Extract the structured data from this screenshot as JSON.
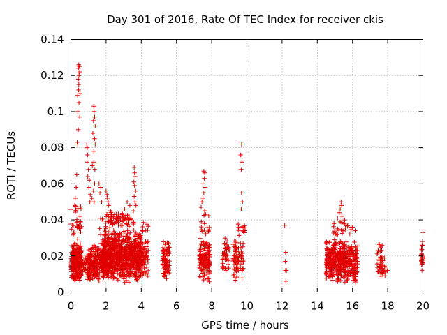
{
  "chart_data": {
    "type": "scatter",
    "title": "Day 301 of 2016, Rate Of TEC Index for receiver ckis",
    "xlabel": "GPS time / hours",
    "ylabel": "ROTI / TECUs",
    "xlim": [
      0,
      20
    ],
    "ylim": [
      0,
      0.14
    ],
    "xticks": [
      0,
      2,
      4,
      6,
      8,
      10,
      12,
      14,
      16,
      18,
      20
    ],
    "xtick_labels": [
      "0",
      "2",
      "4",
      "6",
      "8",
      "10",
      "12",
      "14",
      "16",
      "18",
      "20"
    ],
    "yticks": [
      0,
      0.02,
      0.04,
      0.06,
      0.08,
      0.1,
      0.12,
      0.14
    ],
    "ytick_labels": [
      "0",
      "0.02",
      "0.04",
      "0.06",
      "0.08",
      "0.1",
      "0.12",
      "0.14"
    ],
    "grid": true,
    "marker": "+",
    "color": "#e00000",
    "series": [
      {
        "name": "ROTI",
        "clusters": [
          {
            "x_range": [
              0.0,
              0.6
            ],
            "y_range": [
              0.005,
              0.028
            ],
            "count": 260
          },
          {
            "x_range": [
              0.0,
              0.6
            ],
            "y_range": [
              0.028,
              0.05
            ],
            "count": 30
          },
          {
            "x_range": [
              0.6,
              0.9
            ],
            "y_range": [
              0.008,
              0.022
            ],
            "count": 20
          },
          {
            "x_range": [
              0.9,
              1.6
            ],
            "y_range": [
              0.005,
              0.027
            ],
            "count": 180
          },
          {
            "x_range": [
              1.6,
              2.0
            ],
            "y_range": [
              0.007,
              0.025
            ],
            "count": 70
          },
          {
            "x_range": [
              1.6,
              2.0
            ],
            "y_range": [
              0.025,
              0.045
            ],
            "count": 14
          },
          {
            "x_range": [
              1.8,
              4.0
            ],
            "y_range": [
              0.005,
              0.035
            ],
            "count": 850
          },
          {
            "x_range": [
              2.0,
              3.6
            ],
            "y_range": [
              0.035,
              0.045
            ],
            "count": 80
          },
          {
            "x_range": [
              3.8,
              4.4
            ],
            "y_range": [
              0.005,
              0.03
            ],
            "count": 90
          },
          {
            "x_range": [
              4.0,
              4.4
            ],
            "y_range": [
              0.03,
              0.042
            ],
            "count": 8
          },
          {
            "x_range": [
              5.2,
              5.6
            ],
            "y_range": [
              0.007,
              0.029
            ],
            "count": 90
          },
          {
            "x_range": [
              7.3,
              7.9
            ],
            "y_range": [
              0.005,
              0.03
            ],
            "count": 140
          },
          {
            "x_range": [
              7.4,
              7.9
            ],
            "y_range": [
              0.03,
              0.045
            ],
            "count": 16
          },
          {
            "x_range": [
              8.6,
              9.0
            ],
            "y_range": [
              0.008,
              0.034
            ],
            "count": 45
          },
          {
            "x_range": [
              9.2,
              9.8
            ],
            "y_range": [
              0.005,
              0.03
            ],
            "count": 80
          },
          {
            "x_range": [
              9.5,
              9.9
            ],
            "y_range": [
              0.03,
              0.04
            ],
            "count": 12
          },
          {
            "x_range": [
              14.5,
              16.3
            ],
            "y_range": [
              0.004,
              0.03
            ],
            "count": 450
          },
          {
            "x_range": [
              14.9,
              16.0
            ],
            "y_range": [
              0.03,
              0.04
            ],
            "count": 25
          },
          {
            "x_range": [
              17.4,
              17.7
            ],
            "y_range": [
              0.005,
              0.028
            ],
            "count": 40
          },
          {
            "x_range": [
              17.7,
              18.0
            ],
            "y_range": [
              0.006,
              0.02
            ],
            "count": 14
          },
          {
            "x_range": [
              19.9,
              20.0
            ],
            "y_range": [
              0.007,
              0.03
            ],
            "count": 25
          }
        ],
        "points": [
          [
            0.45,
            0.126
          ],
          [
            0.48,
            0.125
          ],
          [
            0.43,
            0.124
          ],
          [
            0.5,
            0.122
          ],
          [
            0.46,
            0.12
          ],
          [
            0.42,
            0.118
          ],
          [
            0.45,
            0.115
          ],
          [
            0.38,
            0.109
          ],
          [
            0.44,
            0.112
          ],
          [
            0.52,
            0.11
          ],
          [
            0.4,
            0.1
          ],
          [
            0.46,
            0.105
          ],
          [
            0.5,
            0.097
          ],
          [
            0.42,
            0.09
          ],
          [
            0.36,
            0.083
          ],
          [
            0.39,
            0.082
          ],
          [
            0.33,
            0.065
          ],
          [
            0.3,
            0.058
          ],
          [
            0.25,
            0.052
          ],
          [
            0.22,
            0.048
          ],
          [
            1.3,
            0.103
          ],
          [
            1.32,
            0.1
          ],
          [
            1.35,
            0.097
          ],
          [
            1.28,
            0.095
          ],
          [
            1.38,
            0.092
          ],
          [
            1.25,
            0.088
          ],
          [
            1.35,
            0.085
          ],
          [
            1.38,
            0.082
          ],
          [
            1.3,
            0.078
          ],
          [
            1.3,
            0.072
          ],
          [
            1.22,
            0.07
          ],
          [
            1.36,
            0.068
          ],
          [
            1.35,
            0.06
          ],
          [
            1.28,
            0.056
          ],
          [
            1.2,
            0.052
          ],
          [
            1.32,
            0.05
          ],
          [
            0.9,
            0.082
          ],
          [
            0.93,
            0.08
          ],
          [
            0.95,
            0.076
          ],
          [
            0.92,
            0.072
          ],
          [
            1.0,
            0.068
          ],
          [
            0.96,
            0.064
          ],
          [
            1.05,
            0.062
          ],
          [
            1.02,
            0.058
          ],
          [
            1.1,
            0.054
          ],
          [
            1.08,
            0.05
          ],
          [
            1.6,
            0.06
          ],
          [
            1.7,
            0.058
          ],
          [
            1.65,
            0.055
          ],
          [
            1.75,
            0.05
          ],
          [
            2.0,
            0.056
          ],
          [
            2.05,
            0.054
          ],
          [
            2.08,
            0.052
          ],
          [
            2.12,
            0.05
          ],
          [
            2.15,
            0.048
          ],
          [
            2.25,
            0.045
          ],
          [
            3.6,
            0.069
          ],
          [
            3.62,
            0.066
          ],
          [
            3.65,
            0.064
          ],
          [
            3.58,
            0.061
          ],
          [
            3.62,
            0.059
          ],
          [
            3.68,
            0.056
          ],
          [
            3.6,
            0.053
          ],
          [
            3.64,
            0.05
          ],
          [
            3.7,
            0.048
          ],
          [
            3.55,
            0.045
          ],
          [
            3.2,
            0.05
          ],
          [
            3.35,
            0.048
          ],
          [
            3.05,
            0.046
          ],
          [
            7.55,
            0.067
          ],
          [
            7.6,
            0.066
          ],
          [
            7.58,
            0.063
          ],
          [
            7.5,
            0.06
          ],
          [
            7.62,
            0.058
          ],
          [
            7.55,
            0.055
          ],
          [
            7.5,
            0.052
          ],
          [
            7.45,
            0.05
          ],
          [
            7.4,
            0.047
          ],
          [
            7.6,
            0.045
          ],
          [
            9.7,
            0.082
          ],
          [
            9.65,
            0.076
          ],
          [
            9.72,
            0.072
          ],
          [
            9.68,
            0.068
          ],
          [
            9.7,
            0.055
          ],
          [
            9.75,
            0.05
          ],
          [
            9.68,
            0.046
          ],
          [
            15.35,
            0.05
          ],
          [
            15.38,
            0.048
          ],
          [
            15.3,
            0.046
          ],
          [
            15.25,
            0.044
          ],
          [
            15.4,
            0.042
          ],
          [
            15.15,
            0.041
          ],
          [
            15.55,
            0.04
          ],
          [
            16.0,
            0.036
          ],
          [
            16.15,
            0.034
          ],
          [
            12.15,
            0.037
          ],
          [
            12.2,
            0.022
          ],
          [
            12.18,
            0.017
          ],
          [
            12.2,
            0.012
          ],
          [
            12.25,
            0.012
          ],
          [
            12.22,
            0.006
          ],
          [
            20.0,
            0.033
          ],
          [
            19.98,
            0.028
          ]
        ]
      }
    ]
  }
}
